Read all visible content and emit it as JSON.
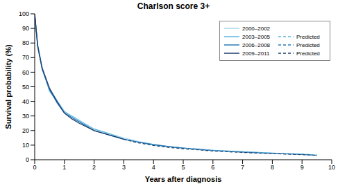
{
  "chart_data": {
    "type": "line",
    "title": "Charlson score 3+",
    "x_label": "Years after diagnosis",
    "y_label": "Survival probability (%)",
    "x": [
      0,
      0.1,
      0.25,
      0.5,
      0.75,
      1,
      1.25,
      1.5,
      2,
      2.5,
      3,
      3.5,
      4,
      4.5,
      5,
      5.5,
      6,
      7,
      8,
      9,
      9.5
    ],
    "series": [
      {
        "name": "2000–2002",
        "color": "#a9d8ee",
        "line_style": "solid",
        "values": [
          100,
          77,
          62,
          48,
          41,
          33,
          29,
          26,
          21,
          18,
          15,
          12.5,
          10.5,
          9,
          8,
          7.5,
          6.5,
          5.5,
          4.5,
          3.8,
          3.2
        ]
      },
      {
        "name": "2003–2005",
        "color": "#5bb8e0",
        "line_style": "solid",
        "values": [
          100,
          79,
          63,
          47,
          40,
          33,
          30,
          27,
          21,
          18,
          14,
          12,
          10,
          9,
          8,
          7,
          6.5,
          5.5,
          4.5,
          null,
          null
        ]
      },
      {
        "name": "2006–2008",
        "color": "#2a7ab8",
        "line_style": "solid",
        "values": [
          100,
          78,
          62,
          48,
          39,
          32,
          29,
          26,
          20,
          17,
          14,
          12,
          10.5,
          9,
          8,
          null,
          null,
          null,
          null,
          null,
          null
        ]
      },
      {
        "name": "2009–2011",
        "color": "#1f3f6e",
        "line_style": "solid",
        "values": [
          100,
          78,
          63,
          49,
          40,
          32,
          28,
          25,
          20,
          17,
          14,
          null,
          null,
          null,
          null,
          null,
          null,
          null,
          null,
          null,
          null
        ]
      },
      {
        "name": "Predicted",
        "color": "#5bb8e0",
        "line_style": "dashed",
        "values": [
          null,
          null,
          null,
          null,
          null,
          null,
          null,
          null,
          null,
          null,
          null,
          null,
          null,
          null,
          null,
          null,
          null,
          null,
          4.5,
          3.9,
          3.3
        ]
      },
      {
        "name": "Predicted",
        "color": "#2a7ab8",
        "line_style": "dashed",
        "values": [
          null,
          null,
          null,
          null,
          null,
          null,
          null,
          null,
          null,
          null,
          null,
          null,
          null,
          null,
          8,
          7.2,
          6.3,
          5.2,
          4.3,
          3.6,
          3.0
        ]
      },
      {
        "name": "Predicted",
        "color": "#1f3f6e",
        "line_style": "dashed",
        "values": [
          null,
          null,
          null,
          null,
          null,
          null,
          null,
          null,
          null,
          null,
          14,
          11.5,
          9.8,
          8.5,
          7.5,
          6.8,
          6,
          5,
          4.2,
          3.5,
          3.0
        ]
      }
    ],
    "xlim": [
      0,
      10
    ],
    "xticks": [
      0,
      1,
      2,
      3,
      4,
      5,
      6,
      7,
      8,
      9,
      10
    ],
    "ylim": [
      0,
      100
    ],
    "yticks": [
      0,
      10,
      20,
      30,
      40,
      50,
      60,
      70,
      80,
      90,
      100
    ],
    "grid": false,
    "legend": "upper right",
    "marker": "none"
  }
}
